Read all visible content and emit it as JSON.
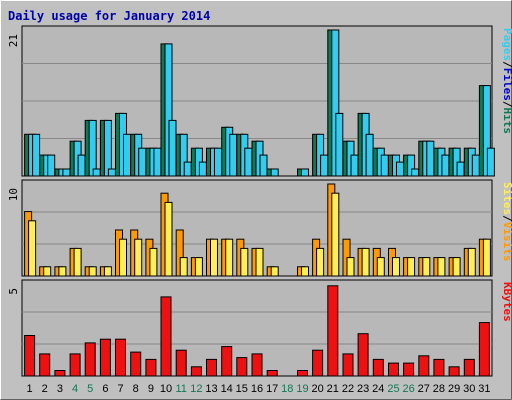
{
  "colors": {
    "background": "#c0c0c0",
    "plot": "#b8b8b8",
    "title": "#0000aa",
    "pages": "#117755",
    "files": "#33ccee",
    "sites": "#ffee55",
    "visits": "#ff9900",
    "kbytes": "#ee1111",
    "weekend_day": "#117755",
    "weekday_day": "#000000"
  },
  "chart_data": {
    "type": "bar",
    "title": "Daily usage for January 2014",
    "categories": [
      "1",
      "2",
      "3",
      "4",
      "5",
      "6",
      "7",
      "8",
      "9",
      "10",
      "11",
      "12",
      "13",
      "14",
      "15",
      "16",
      "17",
      "18",
      "19",
      "20",
      "21",
      "22",
      "23",
      "24",
      "25",
      "26",
      "27",
      "28",
      "29",
      "30",
      "31"
    ],
    "weekend_days": [
      4,
      5,
      11,
      12,
      18,
      19,
      25,
      26
    ],
    "panels": [
      {
        "id": "pages_files",
        "ymax_label": "21",
        "ylim": [
          0,
          21
        ],
        "right_label": [
          "Pages",
          "/",
          "Files",
          "/",
          "Hits"
        ],
        "series": [
          {
            "name": "Hits",
            "values": [
              6,
              3,
              1,
              5,
              8,
              8,
              9,
              6,
              4,
              19,
              6,
              4,
              4,
              7,
              6,
              5,
              1,
              0,
              1,
              6,
              21,
              5,
              9,
              4,
              3,
              3,
              5,
              4,
              4,
              4,
              13
            ]
          },
          {
            "name": "Files",
            "values": [
              6,
              3,
              1,
              5,
              8,
              8,
              9,
              6,
              4,
              19,
              6,
              4,
              4,
              7,
              6,
              5,
              1,
              0,
              1,
              6,
              21,
              5,
              9,
              4,
              3,
              3,
              5,
              4,
              4,
              4,
              13
            ]
          },
          {
            "name": "Pages",
            "values": [
              6,
              3,
              1,
              3,
              1,
              1,
              6,
              4,
              4,
              8,
              2,
              2,
              4,
              6,
              4,
              3,
              0,
              0,
              0,
              3,
              9,
              3,
              6,
              3,
              2,
              1,
              5,
              3,
              2,
              3,
              4
            ]
          }
        ]
      },
      {
        "id": "sites_visits",
        "ymax_label": "10",
        "ylim": [
          0,
          10
        ],
        "right_label": [
          "Sites",
          "/",
          "Visits"
        ],
        "series": [
          {
            "name": "Visits",
            "values": [
              7,
              1,
              1,
              3,
              1,
              1,
              5,
              5,
              4,
              9,
              5,
              2,
              4,
              4,
              4,
              3,
              1,
              0,
              1,
              4,
              10,
              4,
              3,
              3,
              3,
              2,
              2,
              2,
              2,
              3,
              4
            ]
          },
          {
            "name": "Sites",
            "values": [
              6,
              1,
              1,
              3,
              1,
              1,
              4,
              4,
              3,
              8,
              2,
              2,
              4,
              4,
              3,
              3,
              1,
              0,
              1,
              3,
              9,
              2,
              3,
              2,
              2,
              2,
              2,
              2,
              2,
              3,
              4
            ]
          }
        ]
      },
      {
        "id": "kbytes",
        "ymax_label": "5",
        "ylim": [
          0,
          5
        ],
        "right_label": [
          "KBytes"
        ],
        "series": [
          {
            "name": "KBytes",
            "values": [
              2.2,
              1.2,
              0.3,
              1.2,
              1.8,
              2.0,
              2.0,
              1.3,
              0.9,
              4.3,
              1.4,
              0.5,
              0.9,
              1.6,
              1.0,
              1.2,
              0.3,
              0,
              0.3,
              1.4,
              4.9,
              1.2,
              2.3,
              0.9,
              0.7,
              0.7,
              1.1,
              0.9,
              0.5,
              0.9,
              2.9
            ]
          }
        ]
      }
    ]
  }
}
